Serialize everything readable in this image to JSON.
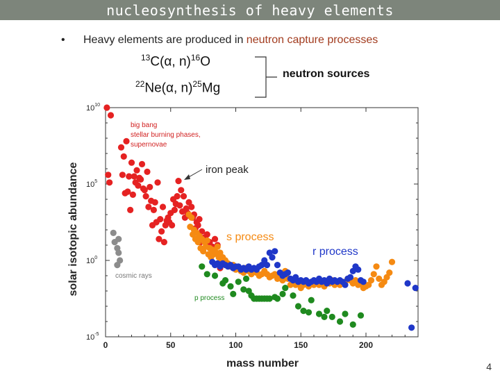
{
  "slide": {
    "title": "nucleosynthesis of heavy elements",
    "bullet_symbol": "•",
    "bullet_text_prefix": "Heavy elements are produced in ",
    "bullet_text_accent": "neutron capture processes",
    "reaction1": {
      "pre_sup": "13",
      "body": "C(α, n)",
      "post_sup": "16",
      "tail": "O"
    },
    "reaction2": {
      "pre_sup": "22",
      "body": "Ne(α, n)",
      "post_sup": "25",
      "tail": "Mg"
    },
    "neutron_sources_label": "neutron sources",
    "page_number": "4",
    "colors": {
      "title_bar": "#7d857b",
      "accent_text": "#a23b1e"
    }
  },
  "chart_data": {
    "type": "scatter",
    "xlabel": "mass number",
    "ylabel": "solar isotopic abundance",
    "xlim": [
      0,
      240
    ],
    "ylim_log10": [
      -5,
      10
    ],
    "x_ticks": [
      0,
      50,
      100,
      150,
      200
    ],
    "y_ticks": [
      {
        "base": "10",
        "exp": "10",
        "value": 10
      },
      {
        "base": "10",
        "exp": "5",
        "value": 5
      },
      {
        "base": "10",
        "exp": "0",
        "value": 0
      },
      {
        "base": "10",
        "exp": "-5",
        "value": -5
      }
    ],
    "annotations": [
      {
        "text": "big bang",
        "color": "#d11f1f"
      },
      {
        "text": "stellar burning phases,",
        "color": "#d11f1f"
      },
      {
        "text": "supernovae",
        "color": "#d11f1f"
      },
      {
        "text": "iron peak",
        "color": "#222222"
      },
      {
        "text": "s process",
        "color": "#f58a12"
      },
      {
        "text": "r process",
        "color": "#1f37c8"
      },
      {
        "text": "cosmic rays",
        "color": "#777777"
      },
      {
        "text": "p process",
        "color": "#1f8a1f"
      }
    ],
    "series": [
      {
        "name": "big bang / stellar burning / supernovae",
        "color": "#e52222",
        "points": [
          [
            1,
            10
          ],
          [
            2,
            5.6
          ],
          [
            3,
            5.1
          ],
          [
            4,
            9.5
          ],
          [
            12,
            7.4
          ],
          [
            13,
            5.6
          ],
          [
            14,
            6.8
          ],
          [
            15,
            4.4
          ],
          [
            16,
            7.8
          ],
          [
            17,
            4.5
          ],
          [
            18,
            5.5
          ],
          [
            19,
            3.3
          ],
          [
            20,
            6.4
          ],
          [
            21,
            4.3
          ],
          [
            22,
            5.5
          ],
          [
            23,
            5.1
          ],
          [
            24,
            5.9
          ],
          [
            25,
            4.9
          ],
          [
            26,
            5.4
          ],
          [
            27,
            5.3
          ],
          [
            28,
            6.3
          ],
          [
            29,
            4.7
          ],
          [
            30,
            4.6
          ],
          [
            31,
            4.2
          ],
          [
            32,
            5.8
          ],
          [
            33,
            3.5
          ],
          [
            34,
            4.8
          ],
          [
            35,
            3.9
          ],
          [
            36,
            2.3
          ],
          [
            37,
            3.3
          ],
          [
            38,
            3.8
          ],
          [
            39,
            2.5
          ],
          [
            40,
            5.1
          ],
          [
            41,
            1.4
          ],
          [
            42,
            2.7
          ],
          [
            43,
            1.9
          ],
          [
            44,
            3.5
          ],
          [
            45,
            1.2
          ],
          [
            46,
            2.3
          ],
          [
            47,
            2.6
          ],
          [
            48,
            2.8
          ],
          [
            49,
            2.5
          ],
          [
            50,
            3.1
          ],
          [
            51,
            2.3
          ],
          [
            52,
            4.0
          ],
          [
            53,
            3.3
          ],
          [
            54,
            3.7
          ],
          [
            55,
            4.2
          ],
          [
            56,
            5.2
          ],
          [
            57,
            3.6
          ],
          [
            58,
            4.6
          ],
          [
            59,
            3.2
          ],
          [
            60,
            4.2
          ],
          [
            61,
            2.8
          ],
          [
            62,
            3.4
          ],
          [
            63,
            3.1
          ],
          [
            64,
            3.8
          ],
          [
            65,
            2.9
          ],
          [
            66,
            3.5
          ],
          [
            67,
            2.8
          ],
          [
            68,
            3.0
          ],
          [
            69,
            2.1
          ],
          [
            70,
            2.5
          ],
          [
            71,
            2.3
          ],
          [
            72,
            2.7
          ],
          [
            73,
            1.2
          ],
          [
            74,
            1.9
          ],
          [
            76,
            1.5
          ],
          [
            78,
            1.7
          ],
          [
            80,
            1.2
          ],
          [
            82,
            0.9
          ],
          [
            84,
            1.4
          ],
          [
            86,
            1.0
          ],
          [
            88,
            -0.5
          ]
        ]
      },
      {
        "name": "s process",
        "color": "#f58a12",
        "points": [
          [
            64,
            3.0
          ],
          [
            65,
            2.2
          ],
          [
            66,
            2.8
          ],
          [
            67,
            1.7
          ],
          [
            68,
            2.0
          ],
          [
            69,
            1.4
          ],
          [
            70,
            1.8
          ],
          [
            71,
            1.2
          ],
          [
            72,
            1.6
          ],
          [
            73,
            0.8
          ],
          [
            74,
            1.4
          ],
          [
            75,
            0.6
          ],
          [
            76,
            1.2
          ],
          [
            77,
            0.9
          ],
          [
            78,
            1.3
          ],
          [
            79,
            0.4
          ],
          [
            80,
            0.8
          ],
          [
            81,
            0.2
          ],
          [
            82,
            0.7
          ],
          [
            83,
            0.4
          ],
          [
            84,
            0.6
          ],
          [
            85,
            0.5
          ],
          [
            86,
            0.9
          ],
          [
            87,
            0.2
          ],
          [
            88,
            0.5
          ],
          [
            89,
            -0.1
          ],
          [
            90,
            0.2
          ],
          [
            92,
            0.0
          ],
          [
            94,
            -0.2
          ],
          [
            96,
            -0.4
          ],
          [
            98,
            -0.3
          ],
          [
            100,
            -0.6
          ],
          [
            102,
            -0.5
          ],
          [
            104,
            -0.7
          ],
          [
            106,
            -0.8
          ],
          [
            108,
            -0.5
          ],
          [
            110,
            -0.7
          ],
          [
            112,
            -0.9
          ],
          [
            114,
            -0.6
          ],
          [
            116,
            -0.8
          ],
          [
            118,
            -1.0
          ],
          [
            120,
            -0.9
          ],
          [
            122,
            -0.7
          ],
          [
            124,
            -0.9
          ],
          [
            126,
            -1.1
          ],
          [
            128,
            -1.0
          ],
          [
            130,
            -0.9
          ],
          [
            132,
            -1.2
          ],
          [
            134,
            -1.1
          ],
          [
            136,
            -1.3
          ],
          [
            138,
            -0.7
          ],
          [
            140,
            -1.2
          ],
          [
            142,
            -1.6
          ],
          [
            144,
            -1.3
          ],
          [
            146,
            -1.6
          ],
          [
            148,
            -1.5
          ],
          [
            150,
            -1.8
          ],
          [
            152,
            -1.6
          ],
          [
            154,
            -1.5
          ],
          [
            156,
            -1.7
          ],
          [
            158,
            -1.5
          ],
          [
            160,
            -1.6
          ],
          [
            162,
            -1.4
          ],
          [
            164,
            -1.6
          ],
          [
            166,
            -1.5
          ],
          [
            168,
            -1.7
          ],
          [
            170,
            -1.4
          ],
          [
            172,
            -1.5
          ],
          [
            174,
            -1.3
          ],
          [
            176,
            -1.6
          ],
          [
            178,
            -1.4
          ],
          [
            180,
            -1.6
          ],
          [
            182,
            -1.5
          ],
          [
            184,
            -1.4
          ],
          [
            186,
            -1.2
          ],
          [
            188,
            -1.3
          ],
          [
            190,
            -1.5
          ],
          [
            192,
            -1.3
          ],
          [
            194,
            -1.6
          ],
          [
            196,
            -1.5
          ],
          [
            198,
            -1.8
          ],
          [
            200,
            -1.7
          ],
          [
            202,
            -1.6
          ],
          [
            204,
            -1.3
          ],
          [
            206,
            -0.9
          ],
          [
            208,
            -0.4
          ],
          [
            210,
            -1.2
          ],
          [
            212,
            -1.6
          ],
          [
            214,
            -1.4
          ],
          [
            216,
            -1.1
          ],
          [
            218,
            -0.8
          ],
          [
            220,
            -0.1
          ]
        ]
      },
      {
        "name": "r process",
        "color": "#1f37c8",
        "points": [
          [
            82,
            -0.1
          ],
          [
            84,
            -0.3
          ],
          [
            86,
            -0.2
          ],
          [
            88,
            -0.4
          ],
          [
            90,
            -0.2
          ],
          [
            92,
            -0.3
          ],
          [
            94,
            -0.4
          ],
          [
            96,
            -0.3
          ],
          [
            98,
            -0.5
          ],
          [
            100,
            -0.4
          ],
          [
            102,
            -0.4
          ],
          [
            104,
            -0.6
          ],
          [
            106,
            -0.5
          ],
          [
            108,
            -0.6
          ],
          [
            110,
            -0.4
          ],
          [
            112,
            -0.6
          ],
          [
            114,
            -0.5
          ],
          [
            116,
            -0.6
          ],
          [
            118,
            -0.4
          ],
          [
            120,
            -0.3
          ],
          [
            122,
            0.0
          ],
          [
            124,
            -0.3
          ],
          [
            126,
            0.5
          ],
          [
            128,
            0.2
          ],
          [
            130,
            0.6
          ],
          [
            132,
            -0.3
          ],
          [
            134,
            -0.8
          ],
          [
            136,
            -1.0
          ],
          [
            138,
            -0.9
          ],
          [
            140,
            -0.8
          ],
          [
            142,
            -1.2
          ],
          [
            144,
            -1.3
          ],
          [
            146,
            -1.1
          ],
          [
            148,
            -1.4
          ],
          [
            150,
            -1.3
          ],
          [
            152,
            -1.4
          ],
          [
            154,
            -1.3
          ],
          [
            156,
            -1.5
          ],
          [
            158,
            -1.4
          ],
          [
            160,
            -1.3
          ],
          [
            162,
            -1.4
          ],
          [
            164,
            -1.2
          ],
          [
            166,
            -1.4
          ],
          [
            168,
            -1.3
          ],
          [
            170,
            -1.5
          ],
          [
            172,
            -1.2
          ],
          [
            174,
            -1.4
          ],
          [
            176,
            -1.3
          ],
          [
            178,
            -1.4
          ],
          [
            180,
            -1.3
          ],
          [
            182,
            -1.4
          ],
          [
            184,
            -1.6
          ],
          [
            186,
            -1.2
          ],
          [
            188,
            -1.1
          ],
          [
            190,
            -0.7
          ],
          [
            192,
            -0.4
          ],
          [
            194,
            -0.6
          ],
          [
            196,
            -1.3
          ],
          [
            198,
            -1.4
          ],
          [
            232,
            -1.5
          ],
          [
            238,
            -1.8
          ],
          [
            235,
            -4.4
          ]
        ]
      },
      {
        "name": "p process",
        "color": "#1f8a1f",
        "points": [
          [
            74,
            -0.4
          ],
          [
            78,
            -0.9
          ],
          [
            84,
            -1.0
          ],
          [
            90,
            -1.5
          ],
          [
            92,
            -1.3
          ],
          [
            96,
            -1.7
          ],
          [
            98,
            -2.2
          ],
          [
            102,
            -1.4
          ],
          [
            106,
            -1.9
          ],
          [
            108,
            -1.2
          ],
          [
            110,
            -2.0
          ],
          [
            112,
            -2.3
          ],
          [
            114,
            -2.5
          ],
          [
            116,
            -2.5
          ],
          [
            118,
            -2.5
          ],
          [
            120,
            -2.5
          ],
          [
            122,
            -2.5
          ],
          [
            124,
            -2.5
          ],
          [
            126,
            -2.5
          ],
          [
            130,
            -2.4
          ],
          [
            132,
            -2.5
          ],
          [
            136,
            -2.2
          ],
          [
            138,
            -1.8
          ],
          [
            144,
            -2.3
          ],
          [
            148,
            -3.0
          ],
          [
            152,
            -3.3
          ],
          [
            156,
            -3.4
          ],
          [
            158,
            -2.6
          ],
          [
            164,
            -3.5
          ],
          [
            168,
            -3.7
          ],
          [
            170,
            -3.3
          ],
          [
            174,
            -3.7
          ],
          [
            180,
            -4.0
          ],
          [
            184,
            -3.5
          ],
          [
            190,
            -4.2
          ],
          [
            196,
            -3.6
          ]
        ]
      },
      {
        "name": "cosmic rays",
        "color": "#8c8c8c",
        "points": [
          [
            6,
            1.8
          ],
          [
            7,
            1.2
          ],
          [
            9,
            0.8
          ],
          [
            10,
            1.4
          ],
          [
            11,
            0.0
          ],
          [
            9,
            -0.3
          ],
          [
            10,
            0.5
          ]
        ]
      }
    ]
  }
}
